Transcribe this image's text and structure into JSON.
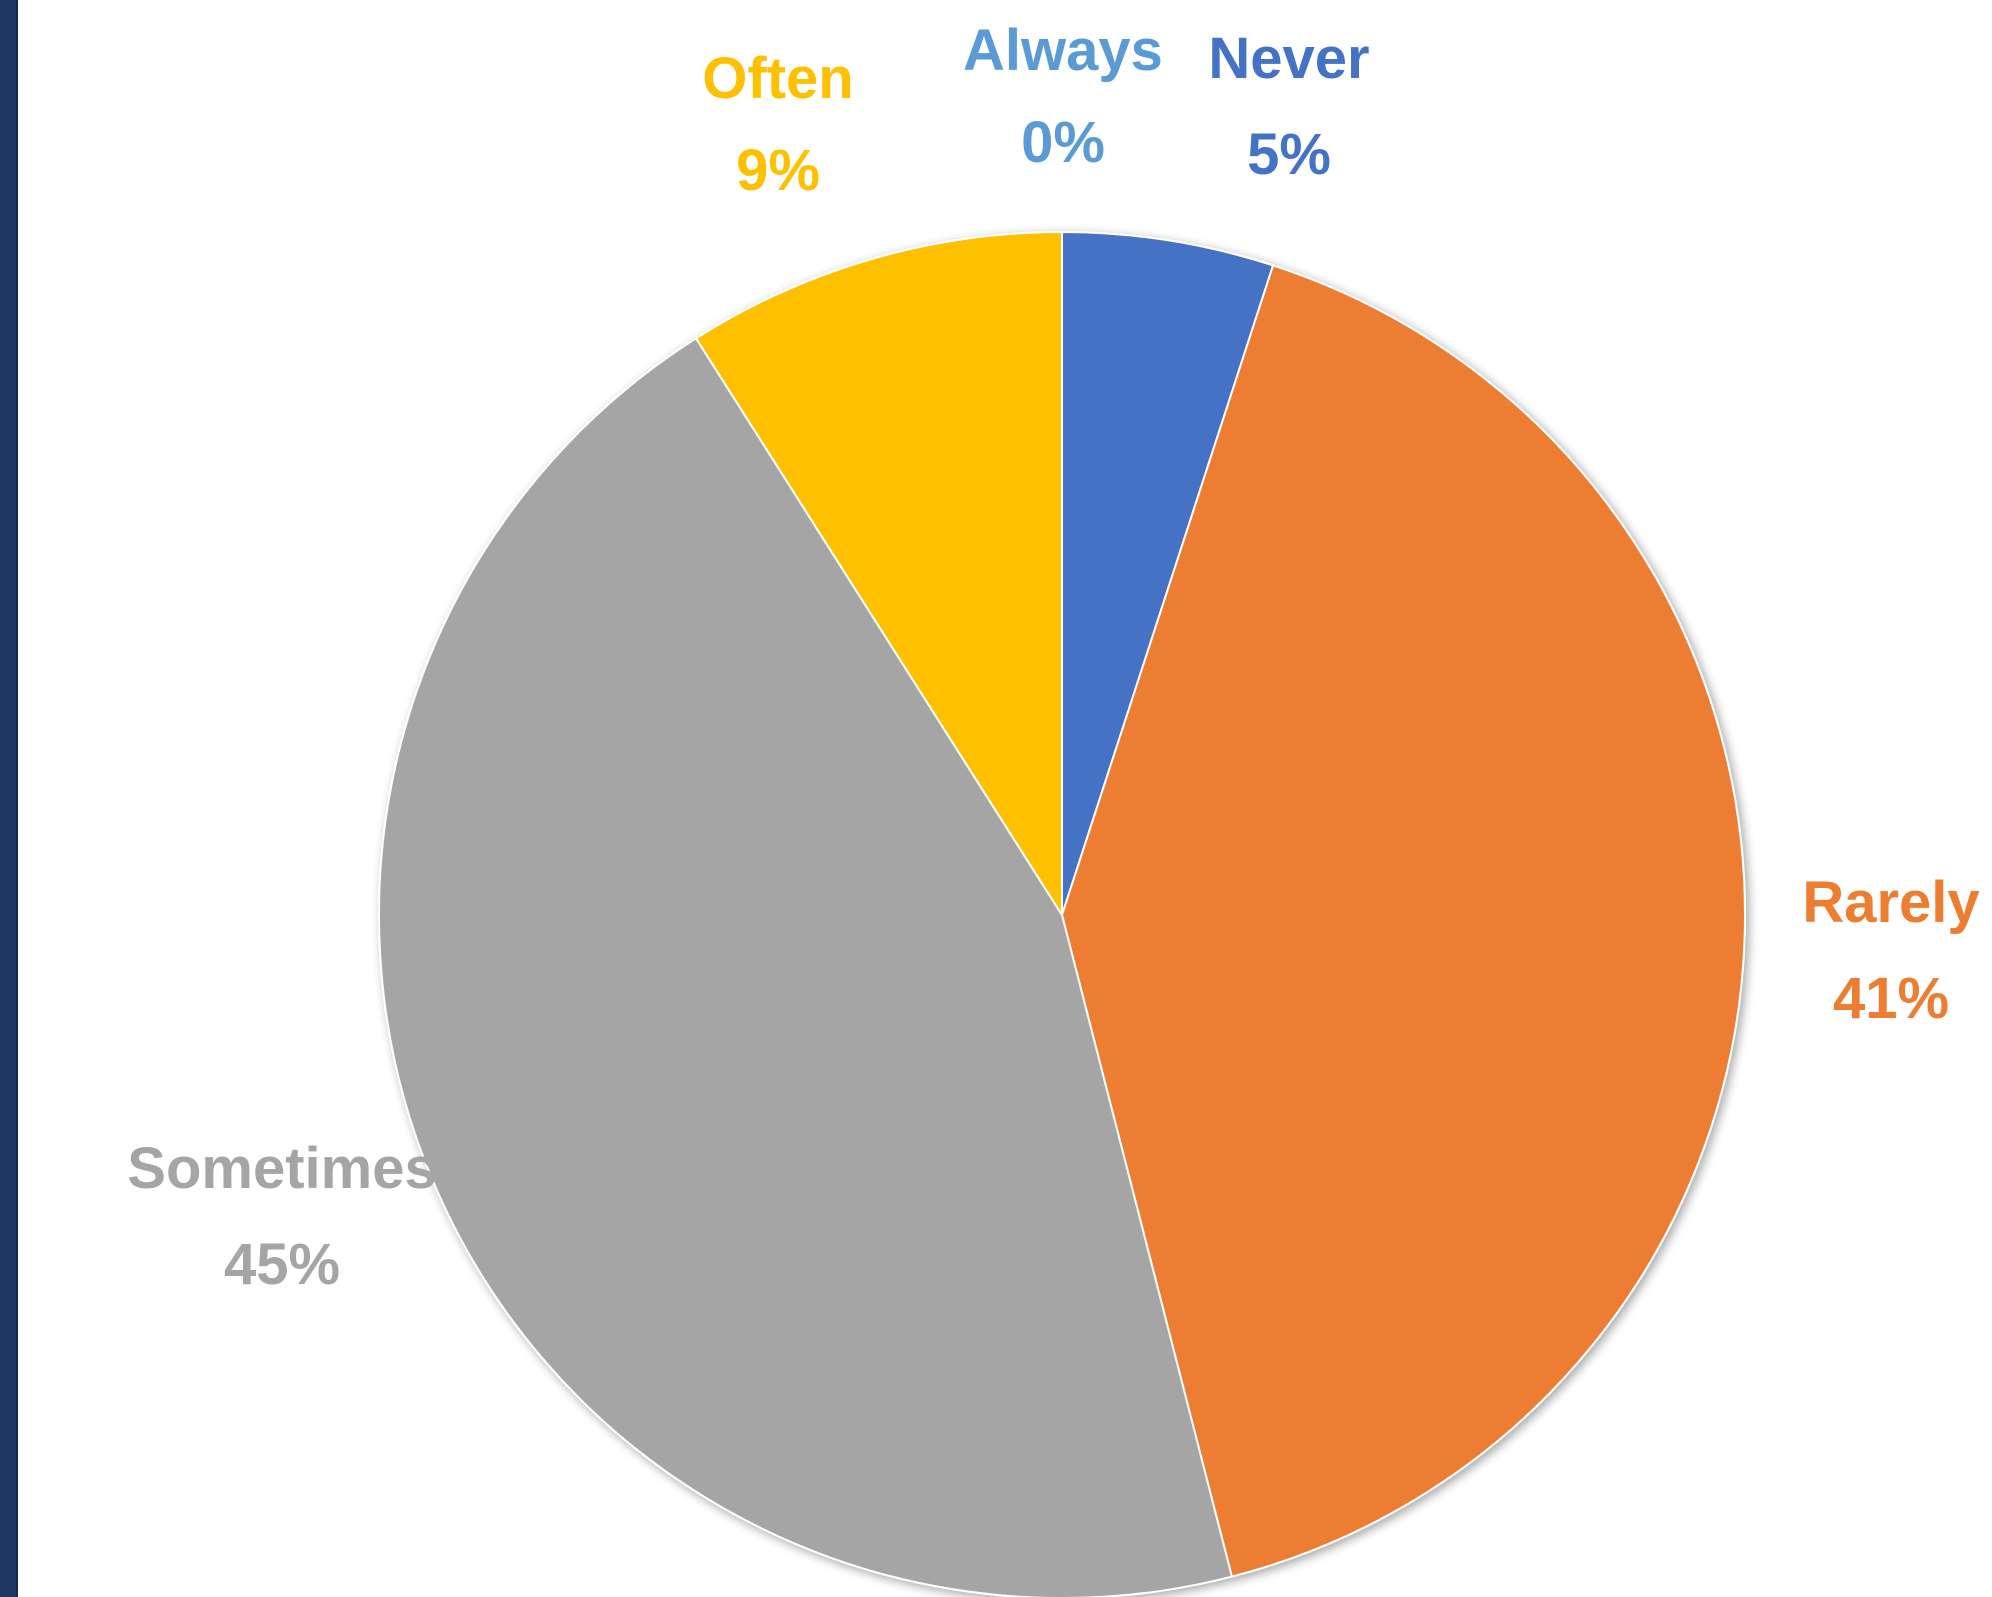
{
  "colors": {
    "frame": "#1f3864",
    "background": "#ffffff"
  },
  "chart_data": {
    "type": "pie",
    "title": "",
    "slices": [
      {
        "label": "Never",
        "value": 5,
        "percent_label": "5%",
        "color": "#4472c4",
        "label_color": "#4472c4"
      },
      {
        "label": "Rarely",
        "value": 41,
        "percent_label": "41%",
        "color": "#ed7d31",
        "label_color": "#ed7d31"
      },
      {
        "label": "Sometimes",
        "value": 45,
        "percent_label": "45%",
        "color": "#a5a5a5",
        "label_color": "#a5a5a5"
      },
      {
        "label": "Often",
        "value": 9,
        "percent_label": "9%",
        "color": "#ffc000",
        "label_color": "#ffc000"
      },
      {
        "label": "Always",
        "value": 0,
        "percent_label": "0%",
        "color": "#5b9bd5",
        "label_color": "#5b9bd5"
      }
    ],
    "start_angle": "12 o'clock",
    "direction": "clockwise",
    "legend": "none",
    "data_labels": "outside, category name and percentage"
  }
}
